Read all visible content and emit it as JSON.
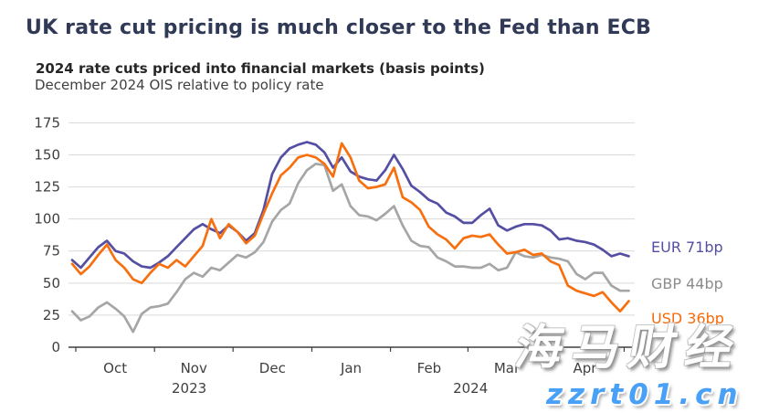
{
  "header": {
    "title": "UK rate cut pricing is much closer to the Fed than ECB",
    "subtitle_bold": "2024 rate cuts priced into financial markets (basis points)",
    "subtitle": "December 2024 OIS relative to policy rate"
  },
  "legend": {
    "eur": {
      "label": "EUR 71bp",
      "color": "#554fa4"
    },
    "gbp": {
      "label": "GBP 44bp",
      "color": "#8c8c8c"
    },
    "usd": {
      "label": "USD 36bp",
      "color": "#f8690a"
    }
  },
  "watermark": {
    "line1": "海马财经",
    "line2": "zzrt01.cn",
    "line2_color": "#49a1f7"
  },
  "chart_data": {
    "type": "line",
    "title": "2024 rate cuts priced into financial markets (basis points)",
    "subtitle": "December 2024 OIS relative to policy rate",
    "x_period": "late September 2023 to late April 2024, daily",
    "ylim": [
      0,
      175
    ],
    "y_ticks": [
      0,
      25,
      50,
      75,
      100,
      125,
      150,
      175
    ],
    "grid": "horizontal",
    "legend_position": "right-end-labels",
    "x_tick_labels": [
      {
        "label": "Oct",
        "idx": 4.95
      },
      {
        "label": "Nov",
        "idx": 13.99
      },
      {
        "label": "Dec",
        "idx": 23.03
      },
      {
        "label": "Jan",
        "idx": 32.08
      },
      {
        "label": "Feb",
        "idx": 41.05
      },
      {
        "label": "Mar",
        "idx": 49.98
      },
      {
        "label": "Apr",
        "idx": 58.96
      }
    ],
    "month_boundary_ticks_idx": [
      0.42,
      9.47,
      18.5,
      27.56,
      36.6,
      45.51,
      54.45,
      63.47
    ],
    "year_labels": [
      {
        "label": "2023",
        "idx": 13.45
      },
      {
        "label": "2024",
        "idx": 45.8
      }
    ],
    "axis_color": "#3f3f3f",
    "gridline_color": "#d9d9d9",
    "series": [
      {
        "name": "EUR",
        "end_value_bp": 71,
        "end_label": "EUR 71bp",
        "color": "#554fa4",
        "values": [
          68,
          62,
          70,
          78,
          83,
          75,
          73,
          67,
          63,
          62,
          66,
          71,
          78,
          85,
          92,
          96,
          92,
          89,
          95,
          90,
          83,
          89,
          107,
          135,
          148,
          155,
          158,
          160,
          158,
          152,
          140,
          148,
          137,
          133,
          131,
          130,
          138,
          150,
          139,
          126,
          121,
          115,
          112,
          105,
          102,
          97,
          97,
          103,
          108,
          95,
          91,
          94,
          96,
          96,
          95,
          91,
          84,
          85,
          83,
          82,
          80,
          76,
          71,
          73,
          71
        ]
      },
      {
        "name": "GBP",
        "end_value_bp": 44,
        "end_label": "GBP 44bp",
        "color": "#a6a6a6",
        "values": [
          28,
          21,
          24,
          31,
          35,
          30,
          24,
          12,
          26,
          31,
          32,
          34,
          43,
          53,
          58,
          55,
          62,
          60,
          66,
          72,
          70,
          74,
          82,
          98,
          107,
          112,
          128,
          138,
          143,
          142,
          122,
          127,
          110,
          103,
          102,
          99,
          104,
          110,
          95,
          83,
          79,
          78,
          70,
          67,
          63,
          63,
          62,
          62,
          65,
          60,
          62,
          74,
          71,
          70,
          72,
          70,
          69,
          67,
          57,
          53,
          58,
          58,
          48,
          44,
          44
        ]
      },
      {
        "name": "USD",
        "end_value_bp": 36,
        "end_label": "USD 36bp",
        "color": "#f76f0e",
        "values": [
          65,
          57,
          63,
          72,
          80,
          68,
          62,
          53,
          50,
          58,
          65,
          62,
          68,
          63,
          71,
          79,
          100,
          85,
          96,
          90,
          81,
          87,
          104,
          120,
          134,
          140,
          148,
          150,
          148,
          143,
          133,
          159,
          148,
          130,
          124,
          125,
          127,
          140,
          117,
          113,
          107,
          94,
          88,
          84,
          77,
          85,
          87,
          86,
          88,
          80,
          73,
          74,
          76,
          72,
          73,
          67,
          64,
          48,
          44,
          42,
          40,
          43,
          35,
          28,
          36
        ]
      }
    ]
  }
}
